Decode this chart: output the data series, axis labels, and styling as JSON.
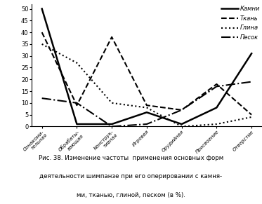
{
  "categories": [
    "Ознакоми-\nтельная",
    "Обрабаты-\nвающая",
    "Конструк-\nтивная",
    "Игровая",
    "Орудийная",
    "Присвоение",
    "Отверстие"
  ],
  "series": {
    "Камни": [
      50,
      1,
      1,
      6,
      1,
      8,
      31
    ],
    "Ткань": [
      40,
      9,
      38,
      9,
      7,
      18,
      5
    ],
    "Глина": [
      35,
      27,
      10,
      8,
      0,
      1,
      4
    ],
    "Песок": [
      12,
      10,
      0,
      1,
      7,
      17,
      19
    ]
  },
  "line_styles": {
    "Камни": {
      "ls": "-",
      "lw": 1.8,
      "color": "black"
    },
    "Ткань": {
      "ls": "--",
      "lw": 1.5,
      "color": "black"
    },
    "Глина": {
      "ls": ":",
      "lw": 1.5,
      "color": "black"
    },
    "Песок": {
      "ls": "-.",
      "lw": 1.5,
      "color": "black"
    }
  },
  "legend_labels": [
    "Камни",
    "Ткань",
    "Глина",
    "Песок"
  ],
  "ylim": [
    0,
    52
  ],
  "yticks": [
    0,
    5,
    10,
    15,
    20,
    25,
    30,
    35,
    40,
    45,
    50
  ],
  "figsize": [
    3.73,
    2.91
  ],
  "dpi": 100,
  "caption_line1": "Рис. 38. Изменение частоты  применения основных форм",
  "caption_line2": "деятельности шимпанзе при его оперировании с камня-",
  "caption_line3": "ми, тканью, глиной, песком (в %)."
}
